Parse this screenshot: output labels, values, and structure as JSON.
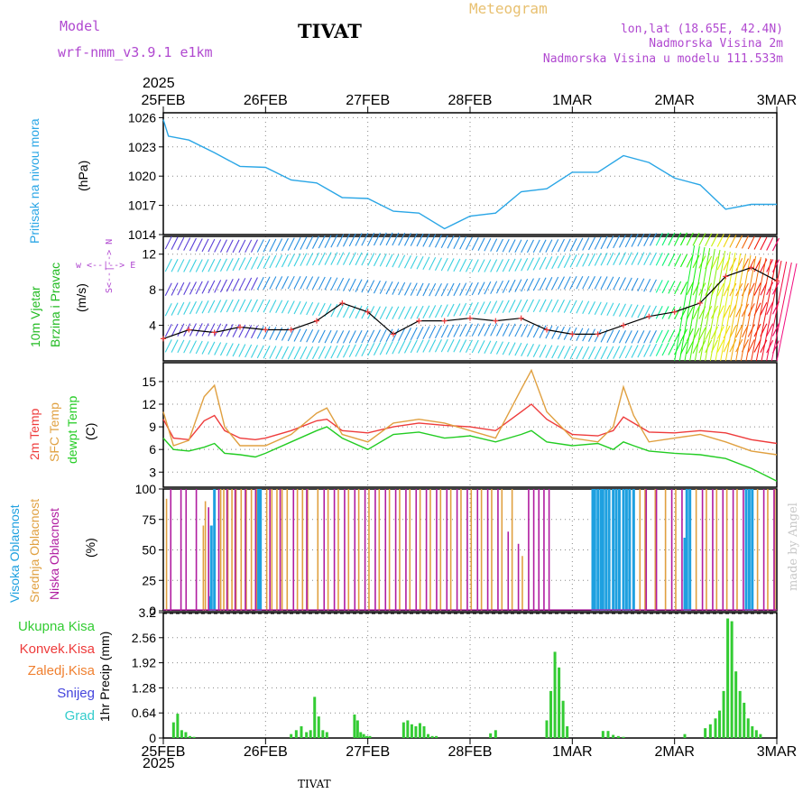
{
  "header": {
    "model_label": "Model",
    "model_name": "wrf-nmm_v3.9.1 e1km",
    "station": "TIVAT",
    "meteogram_label": "Meteogram",
    "lonlat": "lon,lat (18.65E, 42.4N)",
    "elevation": "Nadmorska Visina 2m",
    "model_elevation": "Nadmorska Visina u modelu 111.533m",
    "year_top": "2025",
    "year_bottom": "2025",
    "footer_station": "TIVAT",
    "credit": "made by Angel"
  },
  "colors": {
    "pressure": "#2aa6e6",
    "temp2m": "#ee3b3b",
    "sfc": "#e0a040",
    "dewpt": "#22cc22",
    "cloud_high": "#1ea0e0",
    "cloud_mid": "#e0a040",
    "cloud_low": "#b01ca0",
    "precip_total": "#33cc33",
    "precip_conv": "#ee3b3b",
    "precip_frz": "#f08030",
    "snow": "#4444dd",
    "hail": "#33cccc",
    "magenta_text": "#b048d0",
    "gold_text": "#e8c070"
  },
  "chart_data": [
    {
      "type": "line",
      "panel": "pressure",
      "ylabel": "(hPa)",
      "side_label": "Pritisak na nivou mora",
      "yticks": [
        1014,
        1017,
        1020,
        1023,
        1026
      ],
      "ylim": [
        1014,
        1026.5
      ],
      "x_days": [
        0,
        0.05,
        0.25,
        0.5,
        0.75,
        1.0,
        1.25,
        1.5,
        1.75,
        2.0,
        2.25,
        2.5,
        2.75,
        3.0,
        3.25,
        3.5,
        3.75,
        4.0,
        4.25,
        4.5,
        4.75,
        5.0,
        5.25,
        5.5,
        5.75,
        6.0
      ],
      "values": [
        1025.8,
        1024.1,
        1023.7,
        1022.4,
        1021.0,
        1020.9,
        1019.6,
        1019.3,
        1017.8,
        1017.7,
        1016.4,
        1016.2,
        1014.6,
        1015.9,
        1016.2,
        1018.4,
        1018.7,
        1020.4,
        1020.4,
        1022.1,
        1021.4,
        1019.8,
        1019.1,
        1016.6,
        1017.1,
        1017.1
      ],
      "grid": true
    },
    {
      "type": "line",
      "panel": "wind",
      "ylabel": "(m/s)",
      "side_label": "10m Vjetar Brzina i Pravac",
      "compass": "w <--|--> E",
      "compass_vertical": "S<--|--> N",
      "yticks": [
        4,
        8,
        12
      ],
      "ylim": [
        0,
        14
      ],
      "x_days": [
        0,
        0.25,
        0.5,
        0.75,
        1.0,
        1.25,
        1.5,
        1.75,
        2.0,
        2.25,
        2.5,
        2.75,
        3.0,
        3.25,
        3.5,
        3.75,
        4.0,
        4.25,
        4.5,
        4.75,
        5.0,
        5.25,
        5.5,
        5.75,
        6.0
      ],
      "values": [
        2.5,
        3.5,
        3.2,
        3.8,
        3.5,
        3.5,
        4.5,
        6.5,
        5.5,
        3.0,
        4.5,
        4.5,
        4.8,
        4.5,
        4.8,
        3.5,
        3.0,
        3.0,
        4.0,
        5.0,
        5.5,
        6.5,
        9.5,
        10.5,
        9.0
      ],
      "grid": true
    },
    {
      "type": "line",
      "panel": "temperature",
      "ylabel": "(C)",
      "side_labels": [
        "2m Temp",
        "SFC Temp",
        "dewpt Temp"
      ],
      "yticks": [
        3,
        6,
        9,
        12,
        15
      ],
      "ylim": [
        1,
        17.5
      ],
      "x_days": [
        0,
        0.1,
        0.25,
        0.4,
        0.5,
        0.6,
        0.75,
        0.9,
        1.0,
        1.25,
        1.5,
        1.6,
        1.75,
        2.0,
        2.25,
        2.5,
        2.75,
        3.0,
        3.25,
        3.5,
        3.6,
        3.75,
        4.0,
        4.25,
        4.4,
        4.5,
        4.6,
        4.75,
        5.0,
        5.25,
        5.5,
        5.75,
        6.0
      ],
      "series": [
        {
          "name": "2m Temp",
          "values": [
            10.0,
            7.5,
            7.3,
            9.8,
            10.5,
            8.5,
            7.5,
            7.3,
            7.5,
            8.5,
            9.8,
            10.0,
            8.5,
            8.2,
            9.0,
            9.5,
            9.2,
            9.0,
            8.5,
            11.0,
            12.0,
            10.0,
            8.0,
            7.8,
            8.5,
            10.3,
            9.5,
            8.3,
            8.2,
            8.5,
            8.2,
            7.3,
            6.8
          ]
        },
        {
          "name": "SFC Temp",
          "values": [
            11.0,
            6.5,
            7.2,
            13.0,
            14.5,
            9.0,
            6.5,
            6.5,
            6.5,
            8.0,
            10.8,
            11.5,
            8.0,
            7.0,
            9.5,
            10.0,
            9.5,
            8.5,
            7.5,
            14.0,
            16.5,
            11.0,
            7.5,
            7.0,
            9.0,
            14.3,
            10.5,
            7.0,
            7.5,
            8.0,
            7.0,
            5.8,
            5.3
          ]
        },
        {
          "name": "dewpt Temp",
          "values": [
            7.5,
            6.0,
            5.8,
            6.3,
            6.8,
            5.5,
            5.3,
            5.0,
            5.5,
            7.0,
            8.5,
            9.0,
            7.5,
            6.0,
            8.0,
            8.3,
            7.5,
            7.8,
            7.0,
            8.0,
            8.5,
            7.0,
            6.5,
            6.8,
            6.0,
            7.0,
            6.5,
            5.8,
            5.5,
            5.3,
            4.8,
            3.5,
            1.8
          ]
        }
      ],
      "grid": true
    },
    {
      "type": "bar",
      "panel": "clouds",
      "ylabel": "(%)",
      "side_labels": [
        "Visoka Oblacnost",
        "Srednja Oblacnost",
        "Niska Oblacnost"
      ],
      "yticks": [
        0,
        25,
        50,
        75,
        100
      ],
      "ylim": [
        0,
        100
      ],
      "series": [
        {
          "name": "Visoka Oblacnost",
          "x_days": [
            0.45,
            0.47,
            0.5,
            0.93,
            0.95,
            4.2,
            4.22,
            4.25,
            4.28,
            4.3,
            4.33,
            4.36,
            4.4,
            4.43,
            4.46,
            4.5,
            4.53,
            4.56,
            4.6,
            5.1,
            5.12,
            5.15,
            5.7,
            5.73,
            5.76
          ],
          "values": [
            12,
            70,
            100,
            100,
            100,
            100,
            100,
            100,
            100,
            100,
            100,
            100,
            100,
            100,
            100,
            100,
            100,
            100,
            100,
            60,
            100,
            100,
            100,
            100,
            100
          ]
        },
        {
          "name": "Srednja Oblacnost",
          "x_days": [
            0.02,
            0.38,
            0.4,
            0.55,
            0.58,
            0.62,
            0.66,
            0.7,
            0.75,
            0.8,
            0.85,
            0.9,
            1.0,
            1.05,
            1.1,
            1.15,
            1.2,
            1.3,
            1.35,
            1.4,
            1.5,
            1.6,
            1.7,
            1.8,
            1.9,
            2.0,
            2.1,
            2.2,
            2.3,
            2.4,
            2.5,
            2.6,
            2.7,
            2.8,
            2.9,
            3.0,
            3.1,
            3.2,
            3.3,
            3.4,
            3.5,
            4.65,
            4.7,
            4.8,
            4.9,
            5.0,
            5.2,
            5.3,
            5.4,
            5.5,
            5.6,
            5.8,
            5.9,
            5.97
          ],
          "values": [
            92,
            70,
            90,
            100,
            100,
            100,
            100,
            100,
            100,
            100,
            100,
            100,
            100,
            100,
            100,
            100,
            100,
            100,
            100,
            100,
            100,
            100,
            100,
            100,
            100,
            100,
            100,
            100,
            100,
            100,
            100,
            100,
            100,
            100,
            100,
            100,
            100,
            100,
            100,
            100,
            45,
            100,
            100,
            100,
            100,
            100,
            100,
            100,
            100,
            100,
            100,
            100,
            100,
            100
          ]
        },
        {
          "name": "Niska Oblacnost",
          "x_days": [
            0.05,
            0.15,
            0.2,
            0.3,
            0.42,
            0.52,
            0.6,
            0.68,
            0.78,
            0.88,
            1.02,
            1.12,
            1.25,
            1.38,
            1.55,
            1.65,
            1.75,
            1.85,
            1.95,
            2.05,
            2.15,
            2.25,
            2.35,
            2.45,
            2.55,
            2.65,
            2.75,
            2.85,
            2.95,
            3.05,
            3.15,
            3.25,
            3.35,
            3.45,
            3.55,
            3.6,
            3.65,
            3.7,
            3.75,
            4.7,
            4.8,
            4.95,
            5.05,
            5.25,
            5.35,
            5.45,
            5.55,
            5.65,
            5.85,
            5.95
          ],
          "values": [
            100,
            100,
            100,
            100,
            85,
            100,
            100,
            100,
            100,
            100,
            100,
            100,
            100,
            100,
            100,
            100,
            100,
            100,
            100,
            100,
            100,
            100,
            100,
            100,
            100,
            100,
            100,
            100,
            100,
            100,
            100,
            100,
            65,
            55,
            100,
            100,
            100,
            100,
            100,
            100,
            100,
            100,
            100,
            100,
            100,
            100,
            100,
            100,
            100,
            100
          ]
        }
      ],
      "grid": true
    },
    {
      "type": "bar",
      "panel": "precipitation",
      "ylabel": "1hr Precip (mm)",
      "legend": [
        "Ukupna Kisa",
        "Konvek.Kisa",
        "Zaledj.Kisa",
        "Snijeg",
        "Grad"
      ],
      "yticks": [
        0,
        0.64,
        1.28,
        1.92,
        2.56,
        3.2
      ],
      "ylim": [
        0,
        3.2
      ],
      "x_days": [
        0.1,
        0.14,
        0.18,
        0.22,
        0.26,
        0.3,
        1.25,
        1.3,
        1.35,
        1.4,
        1.44,
        1.48,
        1.52,
        1.56,
        1.6,
        1.87,
        1.9,
        1.93,
        1.96,
        1.99,
        2.02,
        2.35,
        2.39,
        2.43,
        2.47,
        2.51,
        2.55,
        2.59,
        2.63,
        2.67,
        3.2,
        3.25,
        3.75,
        3.79,
        3.83,
        3.87,
        3.91,
        3.95,
        4.3,
        4.35,
        4.4,
        4.45,
        4.5,
        5.1,
        5.3,
        5.35,
        5.4,
        5.44,
        5.48,
        5.52,
        5.56,
        5.6,
        5.64,
        5.68,
        5.72,
        5.76,
        5.8,
        5.84
      ],
      "values": [
        0.4,
        0.62,
        0.2,
        0.15,
        0.05,
        0.03,
        0.1,
        0.2,
        0.3,
        0.15,
        0.2,
        1.05,
        0.55,
        0.2,
        0.15,
        0.6,
        0.45,
        0.15,
        0.1,
        0.05,
        0.05,
        0.4,
        0.45,
        0.35,
        0.3,
        0.38,
        0.3,
        0.1,
        0.05,
        0.05,
        0.12,
        0.2,
        0.45,
        1.2,
        2.2,
        1.8,
        0.95,
        0.3,
        0.18,
        0.18,
        0.08,
        0.05,
        0.03,
        0.1,
        0.25,
        0.35,
        0.5,
        0.7,
        1.2,
        3.05,
        2.98,
        1.7,
        1.2,
        0.9,
        0.5,
        0.3,
        0.2,
        0.1
      ],
      "grid": true
    }
  ],
  "x_axis": {
    "labels": [
      "25FEB",
      "26FEB",
      "27FEB",
      "28FEB",
      "1MAR",
      "2MAR",
      "3MAR"
    ],
    "days": 6
  }
}
